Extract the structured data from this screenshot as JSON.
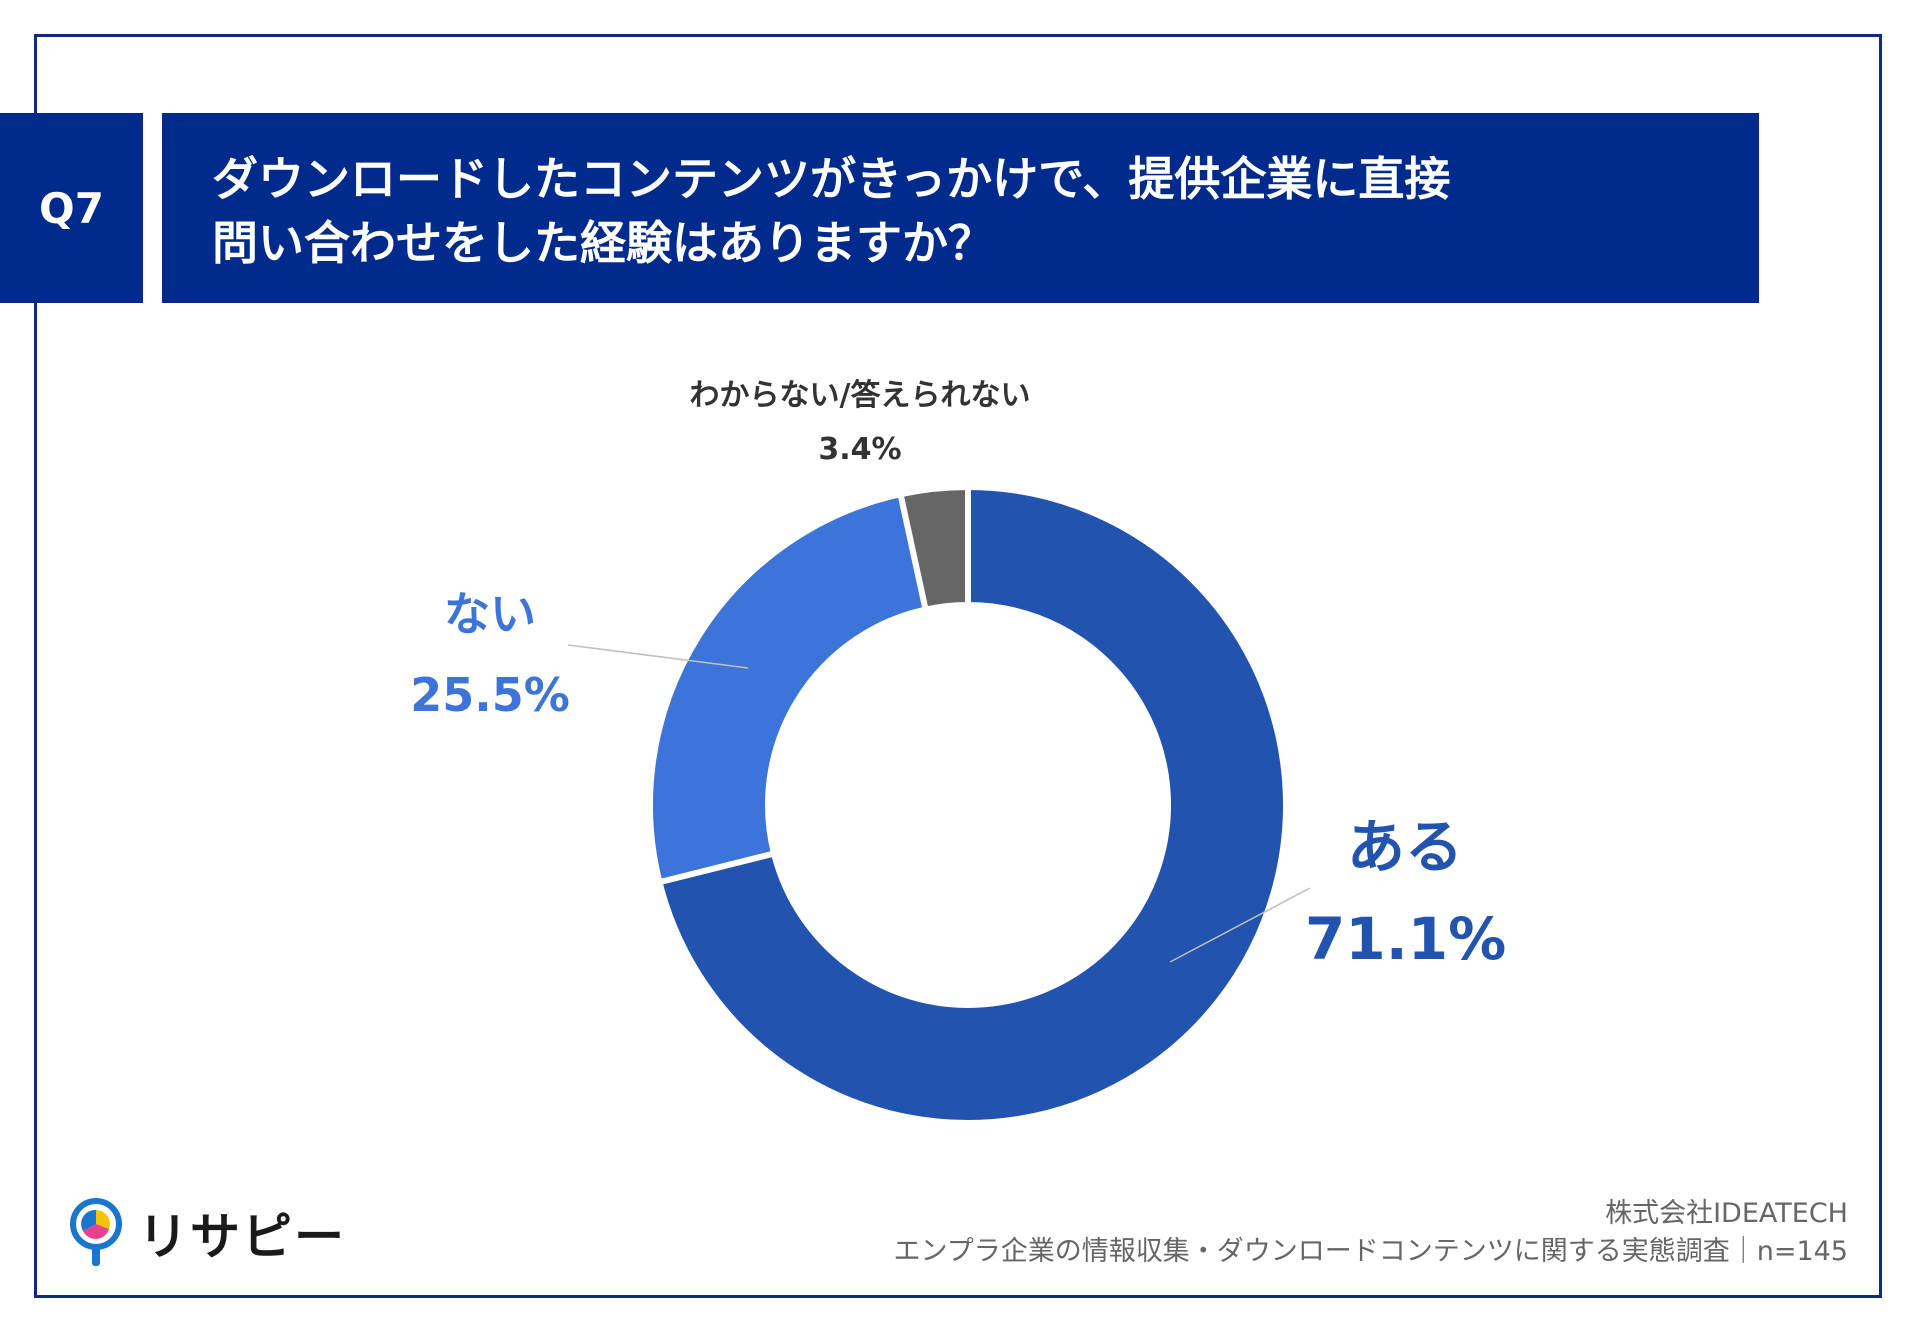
{
  "question": {
    "badge": "Q7",
    "line1": "ダウンロードしたコンテンツがきっかけで、提供企業に直接",
    "line2": "問い合わせをした経験はありますか？"
  },
  "chart_data": {
    "type": "pie",
    "variant": "donut",
    "categories": [
      "ある",
      "ない",
      "わからない/答えられない"
    ],
    "values": [
      71.1,
      25.5,
      3.4
    ],
    "value_labels": [
      "71.1%",
      "25.5%",
      "3.4%"
    ],
    "colors": [
      "#2253ae",
      "#3d74da",
      "#666666"
    ],
    "start": "12 o'clock",
    "direction": "clockwise"
  },
  "labels": {
    "aru": "ある",
    "aru_pct": "71.1%",
    "nai": "ない",
    "nai_pct": "25.5%",
    "dk": "わからない/答えられない",
    "dk_pct": "3.4%"
  },
  "brand": {
    "name": "リサピー",
    "logo_icon": "magnifier-pie-icon"
  },
  "footer": {
    "company": "株式会社IDEATECH",
    "survey": "エンプラ企業の情報収集・ダウンロードコンテンツに関する実態調査｜n=145"
  }
}
